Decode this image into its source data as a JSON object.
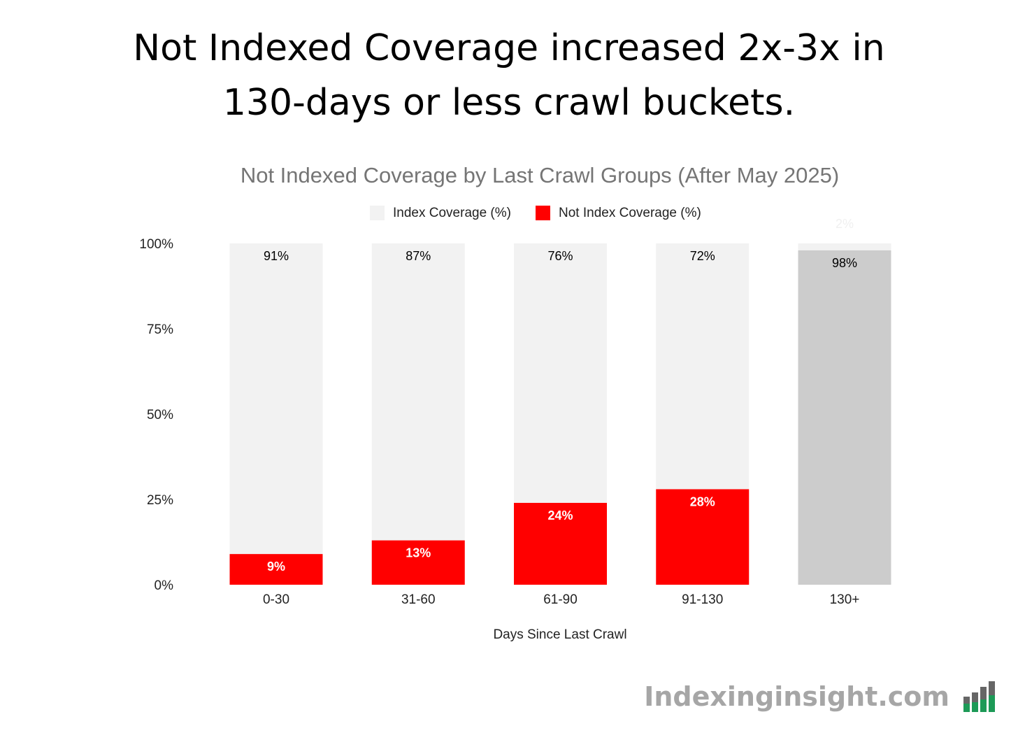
{
  "headline": {
    "line1": "Not Indexed Coverage increased 2x-3x in",
    "line2": "130-days or less crawl buckets."
  },
  "brand": {
    "text": "Indexinginsight.com",
    "logo_icon": "bar-chart-icon",
    "logo_colors": {
      "top": "#666666",
      "bottom": "#1d9a57"
    }
  },
  "chart_data": {
    "type": "bar",
    "stacked": true,
    "title": "Not Indexed Coverage by Last Crawl Groups (After May 2025)",
    "xlabel": "Days Since Last Crawl",
    "ylabel": "",
    "ylim": [
      0,
      100
    ],
    "yticks": [
      "0%",
      "25%",
      "50%",
      "75%",
      "100%"
    ],
    "ytick_values": [
      0,
      25,
      50,
      75,
      100
    ],
    "categories": [
      "0-30",
      "31-60",
      "61-90",
      "91-130",
      "130+"
    ],
    "legend": [
      {
        "name": "Index Coverage (%)",
        "color": "#f2f2f2"
      },
      {
        "name": "Not Index Coverage (%)",
        "color": "#ff0000"
      }
    ],
    "legend_position": "top",
    "series": [
      {
        "name": "Not Index Coverage (%)",
        "values": [
          9,
          13,
          24,
          28,
          98
        ],
        "labels": [
          "9%",
          "13%",
          "24%",
          "28%",
          "98%"
        ],
        "colors": [
          "#ff0000",
          "#ff0000",
          "#ff0000",
          "#ff0000",
          "#cccccc"
        ],
        "label_colors": [
          "#ffffff",
          "#ffffff",
          "#ffffff",
          "#ffffff",
          "#000000"
        ]
      },
      {
        "name": "Index Coverage (%)",
        "values": [
          91,
          87,
          76,
          72,
          2
        ],
        "labels": [
          "91%",
          "87%",
          "76%",
          "72%",
          "2%"
        ],
        "colors": [
          "#f2f2f2",
          "#f2f2f2",
          "#f2f2f2",
          "#f2f2f2",
          "#f2f2f2"
        ],
        "label_colors": [
          "#000000",
          "#000000",
          "#000000",
          "#000000",
          "#f0f0f0"
        ]
      }
    ]
  }
}
